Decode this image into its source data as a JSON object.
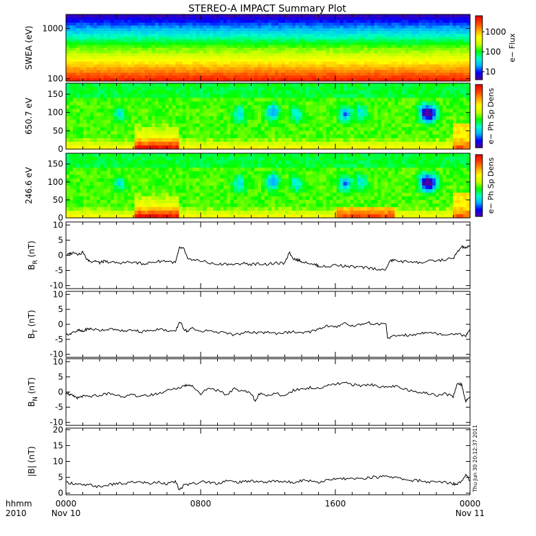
{
  "title": "STEREO-A IMPACT Summary Plot",
  "timestamp": "Thu Jun 30 20:12:37 2011",
  "time_axis": {
    "unit_label": "hhmm",
    "year_label": "2010",
    "ticks": [
      {
        "hours": 0,
        "time": "0000",
        "date": "Nov 10"
      },
      {
        "hours": 8,
        "time": "0800",
        "date": ""
      },
      {
        "hours": 16,
        "time": "1600",
        "date": ""
      },
      {
        "hours": 24,
        "time": "0000",
        "date": "Nov 11"
      }
    ],
    "range_hours": [
      0,
      24
    ]
  },
  "colors": {
    "colormap": [
      "#5000a0",
      "#0000ff",
      "#00b4ff",
      "#00ffc8",
      "#00ff00",
      "#c8ff00",
      "#ffff00",
      "#ffa000",
      "#ff3c00",
      "#e60000"
    ],
    "line": "#000000"
  },
  "chart_data": [
    {
      "type": "heatmap",
      "name": "swea",
      "ylabel": "SWEA (eV)",
      "yscale": "log",
      "ylim": [
        90,
        1900
      ],
      "yticks": [
        "100",
        "1000"
      ],
      "cbar_label": "e− Flux",
      "cbar_scale": "log",
      "cbar_ticks": [
        "10",
        "100",
        "1000"
      ]
    },
    {
      "type": "heatmap",
      "name": "pad650",
      "ylabel": "650.7 eV",
      "ylim": [
        0,
        180
      ],
      "yticks": [
        "0",
        "50",
        "100",
        "150"
      ],
      "cbar_label": "e− Ph Sp Dens"
    },
    {
      "type": "heatmap",
      "name": "pad246",
      "ylabel": "246.6 eV",
      "ylim": [
        0,
        180
      ],
      "yticks": [
        "0",
        "50",
        "100",
        "150"
      ],
      "cbar_label": "e− Ph Sp Dens"
    },
    {
      "type": "line",
      "name": "br",
      "ylabel_main": "B",
      "ylabel_sub": "R",
      "ylabel_unit": "(nT)",
      "ylim": [
        -11,
        11
      ],
      "yticks": [
        "-10",
        "-5",
        "0",
        "5",
        "10"
      ],
      "x": [
        0,
        0.25,
        0.5,
        0.75,
        1,
        1.25,
        1.5,
        1.75,
        2,
        2.25,
        2.5,
        3,
        3.5,
        4,
        4.5,
        5,
        5.5,
        6,
        6.5,
        6.75,
        7,
        7.25,
        7.5,
        8,
        8.5,
        9,
        9.5,
        10,
        10.5,
        11,
        11.5,
        12,
        12.5,
        13,
        13.25,
        13.5,
        13.75,
        14,
        14.5,
        14.75,
        15,
        15.5,
        16,
        16.5,
        17,
        17.5,
        18,
        18.5,
        19,
        19.2,
        19.5,
        20,
        20.5,
        21,
        21.5,
        22,
        22.5,
        23,
        23.25,
        23.5,
        23.75,
        24
      ],
      "y": [
        0,
        0.5,
        1,
        0.3,
        1,
        -1.5,
        -2,
        -1.8,
        -2.5,
        -2,
        -2.2,
        -2.5,
        -2.4,
        -2.2,
        -2.8,
        -2.5,
        -2,
        -1.8,
        -2.5,
        2.5,
        2.2,
        -1.5,
        -1.5,
        -1.8,
        -2.5,
        -3,
        -2.8,
        -3.2,
        -2.6,
        -3,
        -2.8,
        -3,
        -2.5,
        -2.8,
        1,
        -1,
        -1.5,
        -2,
        -2.5,
        -3,
        -3.5,
        -3.8,
        -3.2,
        -3.5,
        -3.8,
        -4,
        -4.2,
        -4.5,
        -4.8,
        -2,
        -1.5,
        -2.2,
        -2,
        -2.5,
        -2,
        -1.8,
        -1.5,
        -1,
        1,
        2.8,
        2.5,
        3
      ]
    },
    {
      "type": "line",
      "name": "bt",
      "ylabel_main": "B",
      "ylabel_sub": "T",
      "ylabel_unit": "(nT)",
      "ylim": [
        -11,
        11
      ],
      "yticks": [
        "-10",
        "-5",
        "0",
        "5",
        "10"
      ],
      "x": [
        0,
        0.25,
        0.5,
        0.75,
        1,
        1.25,
        1.5,
        2,
        2.5,
        3,
        3.5,
        4,
        4.5,
        5,
        5.5,
        6,
        6.5,
        6.75,
        7,
        7.25,
        7.5,
        8,
        8.5,
        9,
        9.5,
        10,
        10.5,
        11,
        11.5,
        12,
        12.5,
        13,
        13.5,
        14,
        14.5,
        15,
        15.5,
        16,
        16.5,
        17,
        17.5,
        18,
        18.5,
        19,
        19.1,
        19.5,
        20,
        20.5,
        21,
        21.5,
        22,
        22.5,
        23,
        23.5,
        23.75,
        24
      ],
      "y": [
        -3.5,
        -3,
        -2.5,
        -2,
        -2.5,
        -1.5,
        -1.5,
        -2,
        -1.5,
        -2,
        -2.2,
        -1.8,
        -2.5,
        -2,
        -1.5,
        -2,
        -2.5,
        1,
        -1.5,
        -2.5,
        -1,
        -2.5,
        -2,
        -2.5,
        -3,
        -3.5,
        -3,
        -2.5,
        -3,
        -2.5,
        -3,
        -2.8,
        -2.5,
        -3,
        -2.5,
        -1.5,
        -0.5,
        -1,
        0.5,
        -0.5,
        0,
        0.5,
        0,
        0.5,
        -4.5,
        -4,
        -3.5,
        -3.8,
        -3,
        -2.5,
        -3,
        -3.5,
        -3,
        -3.5,
        -4,
        -1.5
      ]
    },
    {
      "type": "line",
      "name": "bn",
      "ylabel_main": "B",
      "ylabel_sub": "N",
      "ylabel_unit": "(nT)",
      "ylim": [
        -11,
        11
      ],
      "yticks": [
        "-10",
        "-5",
        "0",
        "5",
        "10"
      ],
      "x": [
        0,
        0.25,
        0.5,
        0.75,
        1,
        1.5,
        2,
        2.5,
        3,
        3.5,
        4,
        4.5,
        5,
        5.5,
        6,
        6.5,
        7,
        7.25,
        7.5,
        8,
        8.5,
        9,
        9.5,
        10,
        10.5,
        11,
        11.25,
        11.5,
        12,
        12.5,
        13,
        13.5,
        14,
        14.5,
        15,
        15.5,
        16,
        16.5,
        17,
        17.5,
        18,
        18.5,
        19,
        19.5,
        20,
        20.5,
        21,
        21.5,
        22,
        22.5,
        23,
        23.25,
        23.5,
        23.75,
        24
      ],
      "y": [
        0,
        -1,
        -1.5,
        -2,
        -1.5,
        -1.5,
        -1,
        -0.5,
        -1,
        -1.5,
        -1,
        -1.5,
        -1,
        -0.5,
        0.5,
        1,
        2,
        2.5,
        2,
        -0.5,
        1.5,
        0.5,
        -1,
        1,
        0.5,
        -0.5,
        -3,
        -0.5,
        -1,
        -0.5,
        -1.5,
        0.5,
        1,
        1.5,
        1,
        2,
        2.5,
        3,
        2.5,
        2,
        2.5,
        2,
        1.5,
        2,
        1,
        0.5,
        0,
        -0.5,
        -1,
        -0.5,
        -1.5,
        3,
        2.5,
        -3,
        -1.5
      ]
    },
    {
      "type": "line",
      "name": "bmag",
      "ylabel_main": "|B|",
      "ylabel_unit": "(nT)",
      "ylim": [
        -0.5,
        20.5
      ],
      "yticks": [
        "0",
        "5",
        "10",
        "15",
        "20"
      ],
      "x": [
        0,
        0.5,
        1,
        1.5,
        2,
        2.5,
        3,
        3.5,
        4,
        4.5,
        5,
        5.5,
        6,
        6.5,
        6.75,
        7,
        7.5,
        8,
        8.5,
        9,
        9.5,
        10,
        10.5,
        11,
        11.5,
        12,
        12.5,
        13,
        13.5,
        14,
        14.5,
        15,
        15.5,
        16,
        16.5,
        17,
        17.5,
        18,
        18.5,
        19,
        19.5,
        20,
        20.5,
        21,
        21.5,
        22,
        22.5,
        23,
        23.25,
        23.5,
        23.75,
        24
      ],
      "y": [
        3.5,
        3,
        2.5,
        2.5,
        2,
        2.5,
        3,
        3,
        3.5,
        3.5,
        3,
        3.5,
        3,
        3.5,
        1,
        2.5,
        3,
        3.5,
        3.5,
        3,
        4,
        3.5,
        3.5,
        4,
        3.5,
        3.5,
        4,
        3.5,
        3.5,
        4,
        4,
        3.5,
        4,
        4.5,
        4.5,
        4.5,
        4.5,
        5,
        5,
        5.5,
        5,
        4.5,
        4,
        4,
        3.5,
        3.5,
        3.5,
        3,
        3,
        4,
        6,
        4
      ]
    }
  ]
}
